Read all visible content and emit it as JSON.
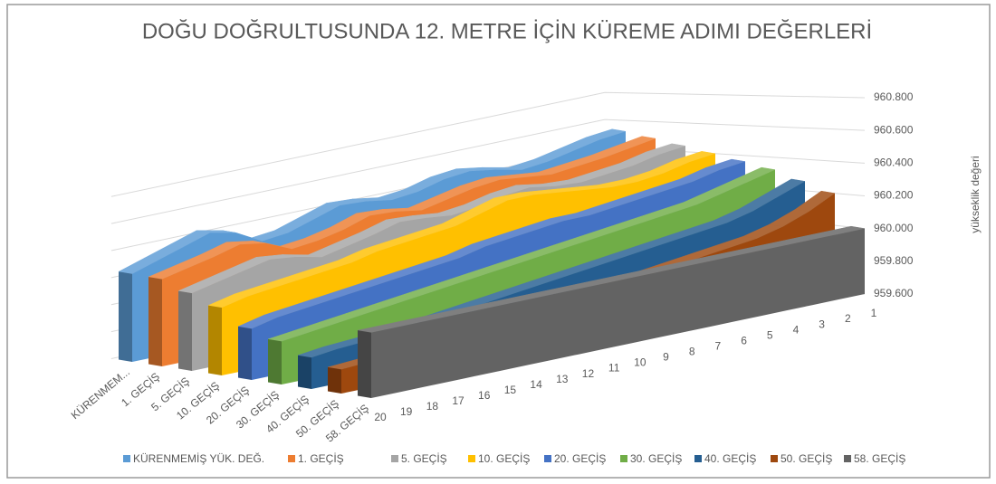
{
  "chart_data": {
    "type": "area3d",
    "title": "DOĞU DOĞRULTUSUNDA 12. METRE İÇİN KÜREME ADIMI DEĞERLERİ",
    "y_axis_label": "yükseklik değeri",
    "categories": [
      "1",
      "2",
      "3",
      "4",
      "5",
      "6",
      "7",
      "8",
      "9",
      "10",
      "11",
      "12",
      "13",
      "14",
      "15",
      "16",
      "17",
      "18",
      "19",
      "20"
    ],
    "depth_axis_labels": [
      "KÜRENMEM...",
      "1. GEÇİŞ",
      "5. GEÇİŞ",
      "10. GEÇİŞ",
      "20. GEÇİŞ",
      "30. GEÇİŞ",
      "40. GEÇİŞ",
      "50. GEÇİŞ",
      "58. GEÇİŞ"
    ],
    "ylim": [
      959.6,
      960.8
    ],
    "yticks": [
      {
        "value": 959.6,
        "label": "959.600"
      },
      {
        "value": 959.8,
        "label": "959.800"
      },
      {
        "value": 960.0,
        "label": "960.000"
      },
      {
        "value": 960.2,
        "label": "960.200"
      },
      {
        "value": 960.4,
        "label": "960.400"
      },
      {
        "value": 960.6,
        "label": "960.600"
      },
      {
        "value": 960.8,
        "label": "960.800"
      }
    ],
    "grid": true,
    "legend": "bottom",
    "series": [
      {
        "name": "KÜRENMEMİŞ YÜK. DEĞ.",
        "color": "#5b9bd5",
        "values": [
          960.52,
          960.5,
          960.46,
          960.42,
          960.4,
          960.44,
          960.47,
          960.45,
          960.4,
          960.38,
          960.41,
          960.42,
          960.36,
          960.3,
          960.28,
          960.38,
          960.42,
          960.36,
          960.3,
          960.24
        ]
      },
      {
        "name": "1. GEÇİŞ",
        "color": "#ed7d31",
        "values": [
          960.48,
          960.45,
          960.42,
          960.4,
          960.38,
          960.4,
          960.42,
          960.4,
          960.36,
          960.32,
          960.35,
          960.36,
          960.3,
          960.26,
          960.24,
          960.32,
          960.35,
          960.3,
          960.26,
          960.22
        ]
      },
      {
        "name": "5. GEÇİŞ",
        "color": "#a5a5a5",
        "values": [
          960.44,
          960.42,
          960.38,
          960.36,
          960.34,
          960.35,
          960.38,
          960.36,
          960.32,
          960.3,
          960.32,
          960.33,
          960.28,
          960.24,
          960.2,
          960.24,
          960.26,
          960.22,
          960.18,
          960.14
        ]
      },
      {
        "name": "10. GEÇİŞ",
        "color": "#ffc000",
        "values": [
          960.4,
          960.38,
          960.34,
          960.32,
          960.32,
          960.34,
          960.36,
          960.38,
          960.38,
          960.33,
          960.28,
          960.26,
          960.24,
          960.22,
          960.18,
          960.16,
          960.14,
          960.12,
          960.1,
          960.06
        ]
      },
      {
        "name": "20. GEÇİŞ",
        "color": "#4472c4",
        "values": [
          960.36,
          960.34,
          960.3,
          960.28,
          960.26,
          960.24,
          960.22,
          960.22,
          960.2,
          960.18,
          960.16,
          960.12,
          960.1,
          960.08,
          960.06,
          960.04,
          960.02,
          960.0,
          959.98,
          959.94
        ]
      },
      {
        "name": "30. GEÇİŞ",
        "color": "#70ad47",
        "values": [
          960.32,
          960.28,
          960.24,
          960.2,
          960.18,
          960.16,
          960.14,
          960.12,
          960.1,
          960.08,
          960.06,
          960.04,
          960.02,
          960.0,
          959.98,
          959.96,
          959.94,
          959.92,
          959.9,
          959.88
        ]
      },
      {
        "name": "40. GEÇİŞ",
        "color": "#255e91",
        "values": [
          960.26,
          960.2,
          960.14,
          960.1,
          960.08,
          960.06,
          960.04,
          960.02,
          960.0,
          959.98,
          959.96,
          959.94,
          959.92,
          959.9,
          959.88,
          959.86,
          959.84,
          959.83,
          959.82,
          959.8
        ]
      },
      {
        "name": "50. GEÇİŞ",
        "color": "#9e480e",
        "values": [
          960.2,
          960.12,
          960.06,
          960.02,
          960.0,
          959.98,
          959.96,
          959.94,
          959.92,
          959.9,
          959.88,
          959.86,
          959.84,
          959.82,
          959.8,
          959.79,
          959.78,
          959.77,
          959.76,
          959.75
        ]
      },
      {
        "name": "58. GEÇİŞ",
        "color": "#636363",
        "values": [
          960.0,
          960.0,
          960.0,
          960.0,
          960.0,
          960.0,
          960.0,
          960.0,
          960.0,
          960.0,
          960.0,
          960.0,
          960.0,
          960.0,
          960.0,
          960.0,
          960.0,
          960.0,
          960.0,
          960.0
        ]
      }
    ]
  }
}
